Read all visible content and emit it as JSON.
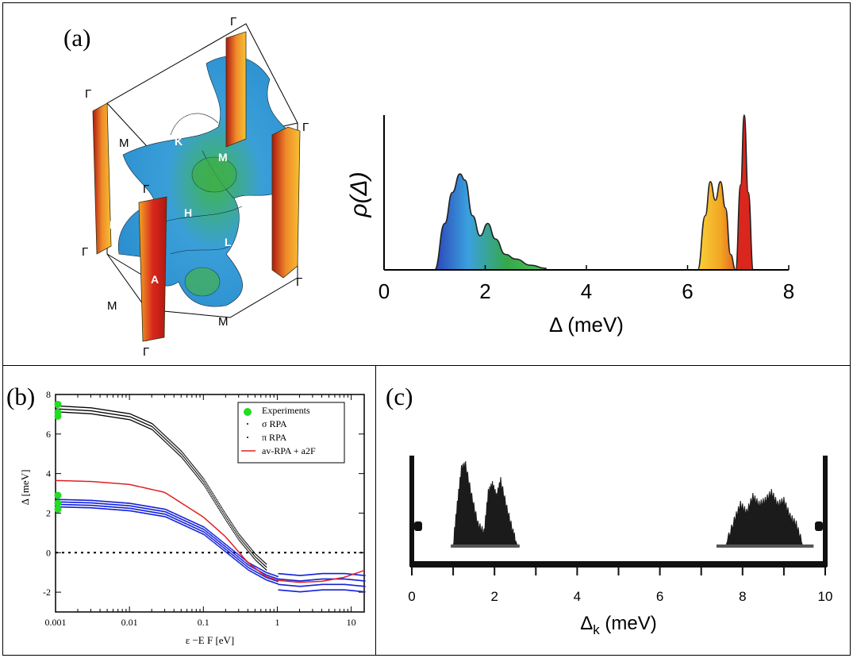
{
  "colors": {
    "sigma_blue": "#3ba0df",
    "sigma_green": "#35a84a",
    "pi_orange": "#f2a623",
    "pi_red": "#d9271e",
    "legend_green": "#22dd22",
    "avrpa_red": "#e02020",
    "pi_points": "#1522d8"
  },
  "panel_a": {
    "label": "(a)",
    "fermi_surface": {
      "points": {
        "gamma": "Γ",
        "M": "M",
        "K": "K",
        "H": "H",
        "L": "L",
        "A": "A"
      }
    },
    "chart": {
      "type": "area",
      "title": "",
      "xlabel": "Δ (meV)",
      "ylabel": "ρ(Δ)",
      "xlim": [
        0,
        8
      ],
      "ticks": [
        0,
        2,
        4,
        6,
        8
      ],
      "tick_labels": [
        "0",
        "2",
        "4",
        "6",
        "8"
      ],
      "sigma_band": {
        "x": [
          1.0,
          1.2,
          1.35,
          1.5,
          1.6,
          1.75,
          1.9,
          2.05,
          2.2,
          2.4,
          2.6,
          2.9,
          3.2
        ],
        "y": [
          0.0,
          0.3,
          0.5,
          0.62,
          0.58,
          0.35,
          0.22,
          0.3,
          0.2,
          0.1,
          0.07,
          0.03,
          0.01
        ]
      },
      "pi_band": {
        "x": [
          6.2,
          6.35,
          6.45,
          6.55,
          6.65,
          6.75,
          6.85,
          6.95
        ],
        "y": [
          0.0,
          0.35,
          0.57,
          0.45,
          0.57,
          0.4,
          0.1,
          0.0
        ]
      },
      "peak": {
        "x": [
          6.95,
          7.05,
          7.12,
          7.2,
          7.3
        ],
        "y": [
          0.0,
          0.55,
          1.0,
          0.5,
          0.0
        ]
      }
    }
  },
  "panel_b": {
    "label": "(b)",
    "chart": {
      "type": "scatter",
      "xlabel": "ε −E F [eV]",
      "ylabel": "Δ [meV]",
      "xlim": [
        0.001,
        15
      ],
      "ylim": [
        -3,
        8
      ],
      "x_ticks": [
        0.001,
        0.01,
        0.1,
        1,
        10
      ],
      "x_tick_labels": [
        "0.001",
        "0.01",
        "0.1",
        "1",
        "10"
      ],
      "y_ticks": [
        -2,
        0,
        2,
        4,
        6,
        8
      ],
      "y_tick_labels": [
        "-2",
        "0",
        "2",
        "4",
        "6",
        "8"
      ],
      "legend": [
        {
          "name": "Experiments",
          "marker": "●"
        },
        {
          "name": "σ   RPA",
          "marker": "·"
        },
        {
          "name": "π   RPA",
          "marker": "·"
        },
        {
          "name": "av-RPA + a2F",
          "marker": "line"
        }
      ],
      "series": [
        {
          "name": "Experiments",
          "x": [
            0.001,
            0.001,
            0.001,
            0.001,
            0.001,
            0.001
          ],
          "y": [
            7.5,
            7.1,
            6.9,
            2.9,
            2.5,
            2.2
          ]
        },
        {
          "name": "σ RPA",
          "x": [
            0.001,
            0.003,
            0.01,
            0.02,
            0.05,
            0.1,
            0.2,
            0.3,
            0.5,
            0.7
          ],
          "y": [
            7.3,
            7.2,
            6.9,
            6.4,
            5.0,
            3.6,
            1.8,
            0.8,
            -0.2,
            -0.7
          ]
        },
        {
          "name": "π RPA",
          "x": [
            0.001,
            0.003,
            0.01,
            0.03,
            0.1,
            0.2,
            0.4,
            0.7,
            1,
            2,
            4,
            8,
            15
          ],
          "y": [
            2.6,
            2.55,
            2.4,
            2.1,
            1.2,
            0.3,
            -0.6,
            -1.1,
            -1.3,
            -1.4,
            -1.3,
            -1.3,
            -1.4
          ]
        },
        {
          "name": "av-RPA + a2F",
          "x": [
            0.001,
            0.003,
            0.01,
            0.03,
            0.1,
            0.2,
            0.4,
            0.7,
            1,
            2,
            4,
            8,
            15
          ],
          "y": [
            3.65,
            3.6,
            3.45,
            3.05,
            1.8,
            0.8,
            -0.5,
            -1.2,
            -1.4,
            -1.5,
            -1.45,
            -1.25,
            -0.9
          ]
        }
      ]
    }
  },
  "panel_c": {
    "label": "(c)",
    "chart": {
      "type": "area",
      "xlabel": "Δ",
      "xlabel_sub": "k",
      "xlabel_unit": " (meV)",
      "xlim": [
        0,
        10
      ],
      "ticks": [
        0,
        2,
        4,
        6,
        8,
        10
      ],
      "tick_labels": [
        "0",
        "2",
        "4",
        "6",
        "8",
        "10"
      ],
      "band1": {
        "x": [
          1.0,
          1.1,
          1.2,
          1.3,
          1.45,
          1.6,
          1.75,
          1.85,
          1.95,
          2.05,
          2.15,
          2.3,
          2.45,
          2.55
        ],
        "y": [
          0.0,
          0.5,
          0.95,
          1.0,
          0.6,
          0.25,
          0.15,
          0.65,
          0.75,
          0.6,
          0.8,
          0.45,
          0.15,
          0.0
        ]
      },
      "band2": {
        "x": [
          7.6,
          7.8,
          7.95,
          8.1,
          8.25,
          8.4,
          8.55,
          8.7,
          8.85,
          9.0,
          9.15,
          9.3,
          9.45
        ],
        "y": [
          0.0,
          0.3,
          0.5,
          0.4,
          0.6,
          0.5,
          0.55,
          0.65,
          0.5,
          0.55,
          0.35,
          0.25,
          0.0
        ]
      }
    }
  }
}
